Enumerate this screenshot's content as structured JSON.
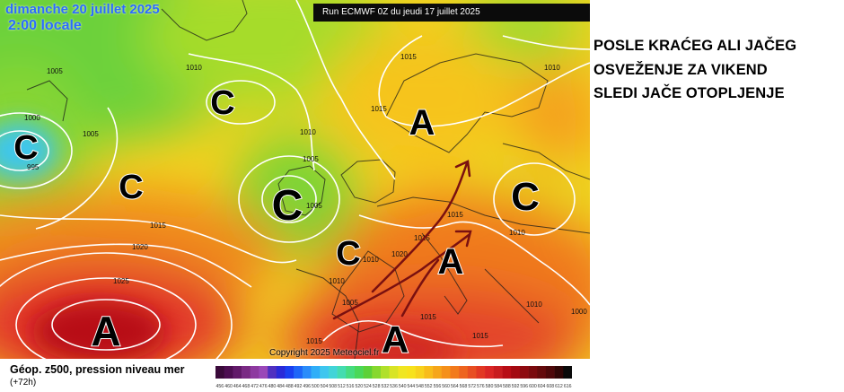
{
  "map": {
    "date_label": "dimanche 20 juillet 2025",
    "time_label": "2:00 locale",
    "run_banner": "Run ECMWF 0Z du jeudi 17 juillet 2025",
    "copyright": "Copyright 2025 Meteociel.fr",
    "pressure_labels": [
      "1005",
      "1000",
      "995",
      "1005",
      "1010",
      "1010",
      "1005",
      "1015",
      "1010",
      "1015",
      "1015",
      "1020",
      "1025",
      "1015",
      "1020",
      "1005",
      "1010",
      "1005",
      "1015",
      "1010",
      "1010",
      "1015",
      "1015",
      "1015",
      "1000",
      "1010"
    ],
    "low_marker_letter": "C",
    "high_marker_letter": "A",
    "colors": {
      "deep_red": "#b80d16",
      "red": "#e0242a",
      "orange": "#f5901a",
      "yellow": "#f7e21c",
      "green": "#5cd138",
      "cyan": "#3ec6ef",
      "trajectory": "#7a1010"
    }
  },
  "headline": {
    "line1": "POSLE KRAĆEG ALI JAČEG",
    "line2": "OSVEŽENJE ZA VIKEND",
    "line3": "SLEDI JAČE OTOPLJENJE"
  },
  "legend": {
    "caption": "Géop. z500, pression niveau mer",
    "lead": "(+72h)",
    "scale_values": [
      "456",
      "460",
      "464",
      "468",
      "472",
      "476",
      "480",
      "484",
      "488",
      "492",
      "496",
      "500",
      "504",
      "508",
      "512",
      "516",
      "520",
      "524",
      "528",
      "532",
      "536",
      "540",
      "544",
      "548",
      "552",
      "556",
      "560",
      "564",
      "568",
      "572",
      "576",
      "580",
      "584",
      "588",
      "592",
      "596",
      "600",
      "604",
      "608",
      "612",
      "616"
    ],
    "scale_colors": [
      "#3a0a3a",
      "#4d0e52",
      "#621a6a",
      "#7a2a84",
      "#8e3aa0",
      "#9a48b8",
      "#5030c0",
      "#2a2ad8",
      "#1a40f0",
      "#1e66f8",
      "#2a8cfa",
      "#30aef8",
      "#3ec6ef",
      "#42d4d8",
      "#44dcb0",
      "#46dc80",
      "#4ad858",
      "#5cd138",
      "#86d82e",
      "#b0e02a",
      "#d8e426",
      "#f0e622",
      "#f7e21c",
      "#f8d21c",
      "#f8bc1a",
      "#f6a61a",
      "#f5901a",
      "#f27a1c",
      "#ee641e",
      "#e84e22",
      "#e23824",
      "#da2626",
      "#c81c20",
      "#b80d16",
      "#a40a12",
      "#8e0a10",
      "#7a0a0e",
      "#640a0c",
      "#4e080a",
      "#300606",
      "#0a0a0a"
    ]
  }
}
